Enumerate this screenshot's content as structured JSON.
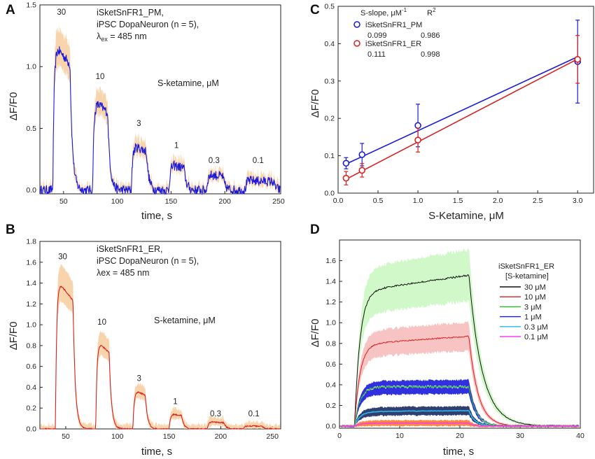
{
  "chart_data": [
    {
      "panel": "A",
      "type": "line",
      "title_lines": [
        "iSketSnFR1_PM,",
        "iPSC DopaNeuron (n = 5),"
      ],
      "lambda_text": {
        "symbol": "λ",
        "sub": "ex",
        "rest": " = 485 nm"
      },
      "xlabel": "time, s",
      "ylabel": "ΔF/F0",
      "xlim": [
        28,
        252
      ],
      "ylim": [
        -0.03,
        1.5
      ],
      "xticks": [
        "50",
        "100",
        "150",
        "200",
        "250"
      ],
      "yticks": [
        "0.0",
        "0.5",
        "1.0",
        "1.5"
      ],
      "ytick_values": [
        0,
        0.5,
        1.0,
        1.5
      ],
      "xtick_values": [
        50,
        100,
        150,
        200,
        250
      ],
      "compound_label": "S-ketamine, μM",
      "line_color": "#1a1adb",
      "band_color": "#f7cfa3",
      "pulses": [
        {
          "label": "30",
          "start": 40,
          "end": 56,
          "amplitude": 1.2,
          "label_x": 48,
          "label_y": 1.42
        },
        {
          "label": "10",
          "start": 77,
          "end": 91,
          "amplitude": 0.74,
          "label_x": 84,
          "label_y": 0.9
        },
        {
          "label": "3",
          "start": 113,
          "end": 127,
          "amplitude": 0.37,
          "label_x": 120,
          "label_y": 0.52
        },
        {
          "label": "1",
          "start": 148,
          "end": 162,
          "amplitude": 0.21,
          "label_x": 155,
          "label_y": 0.34
        },
        {
          "label": "0.3",
          "start": 183,
          "end": 198,
          "amplitude": 0.13,
          "label_x": 190,
          "label_y": 0.22
        },
        {
          "label": "0.1",
          "start": 219,
          "end": 245,
          "amplitude": 0.08,
          "label_x": 231,
          "label_y": 0.22
        }
      ],
      "noise": 0.04
    },
    {
      "panel": "B",
      "type": "line",
      "title_lines": [
        "iSketSnFR1_ER,",
        "iPSC DopaNeuron (n = 5),"
      ],
      "lambda_text": {
        "symbol": "λ",
        "sub": "",
        "rest": "ex = 485 nm"
      },
      "xlabel": "time, s",
      "ylabel": "ΔF/F0",
      "xlim": [
        25,
        258
      ],
      "ylim": [
        0,
        1.8
      ],
      "xticks": [
        "50",
        "100",
        "150",
        "200",
        "250"
      ],
      "yticks": [
        "0.0",
        "0.2",
        "0.4",
        "0.6",
        "0.8",
        "1.0",
        "1.2",
        "1.4",
        "1.6",
        "1.8"
      ],
      "ytick_values": [
        0,
        0.2,
        0.4,
        0.6,
        0.8,
        1.0,
        1.2,
        1.4,
        1.6,
        1.8
      ],
      "xtick_values": [
        50,
        100,
        150,
        200,
        250
      ],
      "compound_label": "S-ketamine, μM",
      "line_color": "#d82020",
      "band_color": "#f7cfa3",
      "pulses": [
        {
          "label": "30",
          "start": 40,
          "end": 57,
          "amplitude": 1.45,
          "label_x": 47,
          "label_y": 1.63
        },
        {
          "label": "10",
          "start": 79,
          "end": 92,
          "amplitude": 0.86,
          "label_x": 85,
          "label_y": 1.0
        },
        {
          "label": "3",
          "start": 115,
          "end": 127,
          "amplitude": 0.38,
          "label_x": 121,
          "label_y": 0.46
        },
        {
          "label": "1",
          "start": 150,
          "end": 162,
          "amplitude": 0.15,
          "label_x": 156,
          "label_y": 0.24
        },
        {
          "label": "0.3",
          "start": 187,
          "end": 203,
          "amplitude": 0.07,
          "label_x": 195,
          "label_y": 0.12
        },
        {
          "label": "0.1",
          "start": 222,
          "end": 240,
          "amplitude": 0.03,
          "label_x": 232,
          "label_y": 0.12
        }
      ],
      "noise": 0.006
    },
    {
      "panel": "C",
      "type": "scatter",
      "xlabel": "S-Ketamine, μM",
      "ylabel": "ΔF/F0",
      "xlim": [
        0,
        3.2
      ],
      "ylim": [
        0,
        0.5
      ],
      "xticks": [
        "0.0",
        "0.5",
        "1.0",
        "1.5",
        "2.0",
        "2.5",
        "3.0"
      ],
      "xtick_values": [
        0,
        0.5,
        1.0,
        1.5,
        2.0,
        2.5,
        3.0
      ],
      "yticks": [
        "0.0",
        "0.1",
        "0.2",
        "0.3",
        "0.4",
        "0.5"
      ],
      "ytick_values": [
        0,
        0.1,
        0.2,
        0.3,
        0.4,
        0.5
      ],
      "legend_header": {
        "slope": "S-slope, μM",
        "unit_sup": "-1",
        "r": "R",
        "r_sup": "2"
      },
      "series": [
        {
          "name": "iSketSnFR1_PM",
          "color": "#1a1adb",
          "slope_text": "0.099",
          "r2_text": "0.986",
          "slope": 0.099,
          "intercept": 0.068,
          "x": [
            0.1,
            0.3,
            1.0,
            3.0
          ],
          "y": [
            0.08,
            0.103,
            0.181,
            0.352
          ],
          "err": [
            0.015,
            0.03,
            0.057,
            0.111
          ]
        },
        {
          "name": "iSketSnFR1_ER",
          "color": "#d82020",
          "slope_text": "0.111",
          "r2_text": "0.998",
          "slope": 0.111,
          "intercept": 0.026,
          "x": [
            0.1,
            0.3,
            1.0,
            3.0
          ],
          "y": [
            0.04,
            0.061,
            0.142,
            0.358
          ],
          "err": [
            0.018,
            0.018,
            0.032,
            0.064
          ]
        }
      ]
    },
    {
      "panel": "D",
      "type": "line",
      "xlabel": "time, s",
      "ylabel": "ΔF/F0",
      "xlim": [
        0,
        40
      ],
      "ylim": [
        -0.02,
        1.8
      ],
      "xticks": [
        "0",
        "10",
        "20",
        "30",
        "40"
      ],
      "xtick_values": [
        0,
        10,
        20,
        30,
        40
      ],
      "yticks": [
        "0.0",
        "0.2",
        "0.4",
        "0.6",
        "0.8",
        "1.0",
        "1.2",
        "1.4",
        "1.6"
      ],
      "ytick_values": [
        0,
        0.2,
        0.4,
        0.6,
        0.8,
        1.0,
        1.2,
        1.4,
        1.6
      ],
      "legend_title": [
        "iSketSnFR1_ER",
        "[S-ketamine]"
      ],
      "stim_start": 2.5,
      "stim_end": 21.5,
      "series": [
        {
          "name": "30 μM",
          "color": "#111111",
          "band": "#c9f7c0",
          "plateau0": 1.3,
          "plateau1": 1.46,
          "spread": 0.24,
          "decay": 2.2
        },
        {
          "name": "10 μM",
          "color": "#d82020",
          "band": "#f7b8b8",
          "plateau0": 0.79,
          "plateau1": 0.87,
          "spread": 0.13,
          "decay": 1.5
        },
        {
          "name": "3 μM",
          "color": "#22bb22",
          "band": "#c9f7c0",
          "plateau0": 0.38,
          "plateau1": 0.38,
          "spread": 0.0,
          "decay": 1.2
        },
        {
          "name": "1 μM",
          "color": "#1a1adb",
          "band": "#1a1adb",
          "plateau0": 0.37,
          "plateau1": 0.38,
          "spread": 0.06,
          "decay": 1.2
        },
        {
          "name": "0.3 μM",
          "color": "#2ab4f0",
          "band": "#1a2a5e",
          "plateau0": 0.14,
          "plateau1": 0.15,
          "spread": 0.035,
          "decay": 1.0
        },
        {
          "name": "0.1 μM",
          "color": "#f040f0",
          "band": "#ff7a2a",
          "plateau0": 0.03,
          "plateau1": 0.03,
          "spread": 0.02,
          "decay": 0.8
        }
      ]
    }
  ]
}
